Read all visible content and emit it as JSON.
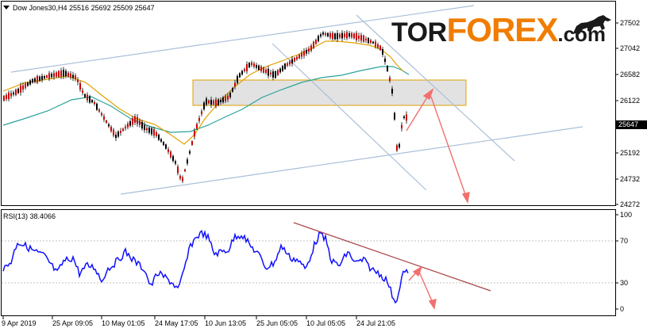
{
  "main_chart": {
    "symbol_title": "Dow Jones30,H4  25516 25692 25509 25647",
    "current_price_label": "25647",
    "price_axis_labels": [
      "27502",
      "27042",
      "26582",
      "26122",
      "25647",
      "25192",
      "24732",
      "24272"
    ],
    "logo": {
      "part1": "TOR",
      "part2": "FOREX",
      "part3": ".com",
      "brand_color": "#f07c00"
    },
    "colors": {
      "candles": "#000000",
      "bearish_candle_body": "#cc0000",
      "ma_fast": "#e2a100",
      "ma_slow": "#2aa39a",
      "channel_lines": "#aabfd8",
      "resistance_zone": "#d8d8d8",
      "forecast_arrow": "#f07070"
    }
  },
  "rsi_panel": {
    "title": "RSI(13) 38.4066",
    "axis_labels": [
      "100",
      "70",
      "30",
      "0"
    ],
    "colors": {
      "rsi_line": "#1010ff",
      "trend_line": "#aa4444",
      "forecast_arrow": "#f07070"
    }
  },
  "time_axis": {
    "labels": [
      "9 Apr 2019",
      "25 Apr 09:05",
      "10 May 01:05",
      "24 May 17:05",
      "10 Jun 13:05",
      "25 Jun 05:05",
      "10 Jul 05:05",
      "24 Jul 21:05"
    ]
  }
}
